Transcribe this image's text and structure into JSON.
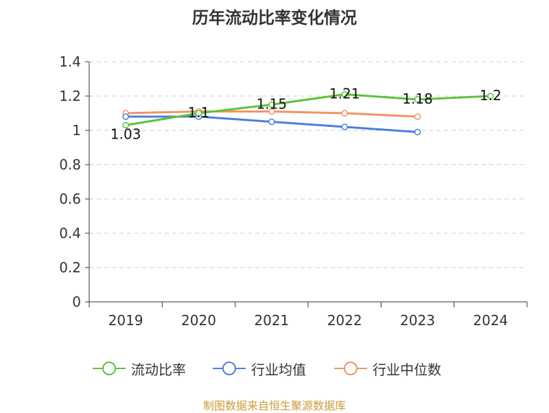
{
  "chart_data": {
    "type": "line",
    "title": "历年流动比率变化情况",
    "categories": [
      "2019",
      "2020",
      "2021",
      "2022",
      "2023",
      "2024"
    ],
    "ylim": [
      0,
      1.4
    ],
    "yticks": [
      "0",
      "0.2",
      "0.4",
      "0.6",
      "0.8",
      "1",
      "1.2",
      "1.4"
    ],
    "grid": true,
    "legend_position": "bottom",
    "series": [
      {
        "name": "流动比率",
        "color": "#5cc13c",
        "values": [
          1.03,
          1.1,
          1.15,
          1.21,
          1.18,
          1.2
        ],
        "labels": [
          "1.03",
          "1.1",
          "1.15",
          "1.21",
          "1.18",
          "1.2"
        ]
      },
      {
        "name": "行业均值",
        "color": "#4a7fdc",
        "values": [
          1.08,
          1.08,
          1.05,
          1.02,
          0.99,
          null
        ],
        "labels": []
      },
      {
        "name": "行业中位数",
        "color": "#f29364",
        "values": [
          1.1,
          1.11,
          1.11,
          1.1,
          1.08,
          null
        ],
        "labels": []
      }
    ],
    "source_note": "制图数据来自恒生聚源数据库"
  }
}
